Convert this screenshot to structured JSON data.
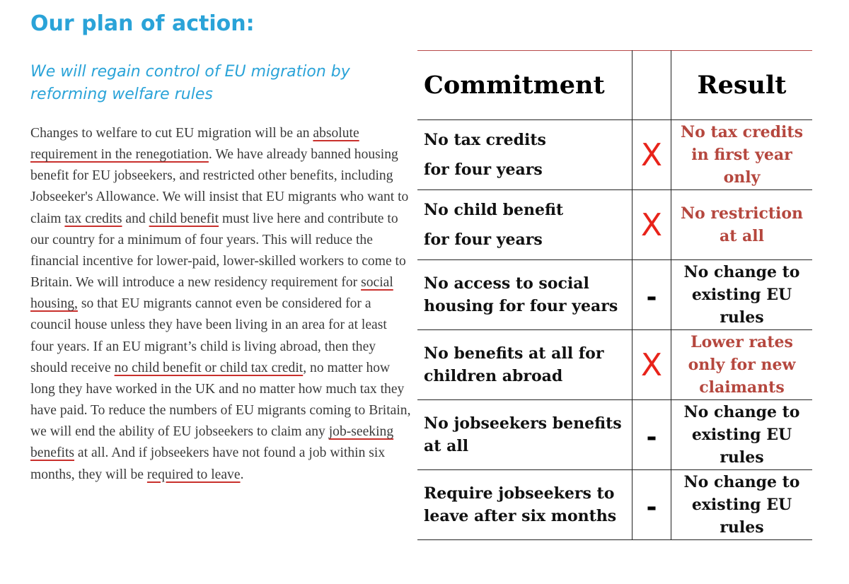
{
  "left": {
    "heading": "Our plan of action:",
    "subheading": "We will regain control of EU migration by reforming welfare rules",
    "paragraph": [
      {
        "t": "Changes to welfare to cut EU migration will be an "
      },
      {
        "t": "absolute requirement in the renegotiation",
        "u": true
      },
      {
        "t": ". We have already banned housing benefit for EU jobseekers, and restricted other benefits, including Jobseeker's Allowance. We will insist that EU migrants who want to claim "
      },
      {
        "t": "tax credits",
        "u": true
      },
      {
        "t": " and "
      },
      {
        "t": "child benefit",
        "u": true
      },
      {
        "t": " must live here and contribute to our country for a minimum of four years. This will reduce the financial incentive for lower-paid, lower-skilled workers to come to Britain. We will introduce a new residency requirement for "
      },
      {
        "t": "social housing,",
        "u": true
      },
      {
        "t": " so that EU migrants cannot even be considered for a council house unless they have been living in an area for at least four years. If an EU migrant’s child is living abroad, then they should receive "
      },
      {
        "t": "no child benefit or child tax credit",
        "u": true
      },
      {
        "t": ", no matter how long they have worked in the UK and no matter how much tax they have paid. To reduce the numbers of EU migrants coming to Britain, we will end the ability of EU jobseekers to claim any "
      },
      {
        "t": "job-seeking benefits",
        "u": true
      },
      {
        "t": " at all. And if jobseekers have not found a job within six months, they will be "
      },
      {
        "t": "required to leave",
        "u": true
      },
      {
        "t": "."
      }
    ]
  },
  "table": {
    "header_commitment": "Commitment",
    "header_result": "Result",
    "rows": [
      {
        "commitment": "No tax credits\nfor four years",
        "mark": "X",
        "result": "No tax credits in first year only",
        "result_color": "red",
        "wide": true
      },
      {
        "commitment": "No child benefit\nfor four years",
        "mark": "X",
        "result": "No restriction at all",
        "result_color": "red",
        "wide": true
      },
      {
        "commitment": "No access to social housing for four years",
        "mark": "-",
        "result": "No change to existing EU rules",
        "result_color": "black",
        "wide": false
      },
      {
        "commitment": "No benefits at all for children abroad",
        "mark": "X",
        "result": "Lower rates only for new claimants",
        "result_color": "red",
        "wide": false
      },
      {
        "commitment": "No jobseekers benefits at all",
        "mark": "-",
        "result": "No change to existing EU rules",
        "result_color": "black",
        "wide": false
      },
      {
        "commitment": "Require jobseekers to leave after six months",
        "mark": "-",
        "result": "No change to existing EU rules",
        "result_color": "black",
        "wide": false
      }
    ]
  }
}
